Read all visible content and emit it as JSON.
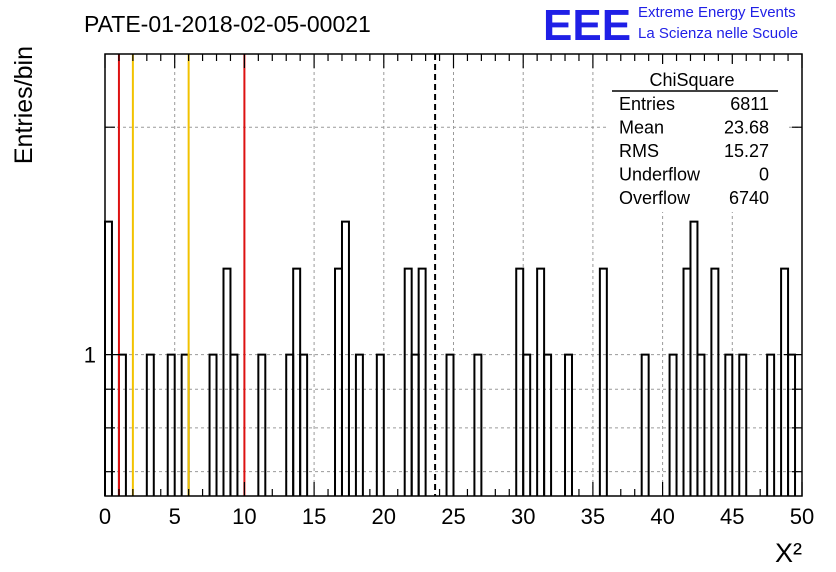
{
  "title": "PATE-01-2018-02-05-00021",
  "logo": {
    "letters": "EEE",
    "line1": "Extreme Energy Events",
    "line2": "La Scienza nelle Scuole",
    "color": "#1f1fe6"
  },
  "colors": {
    "hist": "#000000",
    "red": "#dd1111",
    "yellow": "#f2c200",
    "grid": "#9a9a9a"
  },
  "stats": {
    "title": "ChiSquare",
    "rows": [
      {
        "label": "Entries",
        "value": "6811"
      },
      {
        "label": "Mean",
        "value": "23.68"
      },
      {
        "label": "RMS",
        "value": "15.27"
      },
      {
        "label": "Underflow",
        "value": "0"
      },
      {
        "label": "Overflow",
        "value": "6740"
      }
    ]
  },
  "chart_data": {
    "type": "histogram",
    "xlabel": "X²",
    "ylabel": "Entries/bin",
    "xlim": [
      0,
      50
    ],
    "ylim": [
      0.65,
      2.5
    ],
    "y_scale": "log",
    "grid": true,
    "x_ticks": [
      "0",
      "5",
      "10",
      "15",
      "20",
      "25",
      "30",
      "35",
      "40",
      "45",
      "50"
    ],
    "y_ticks": [
      "1"
    ],
    "bin_width": 0.5,
    "bins": [
      {
        "x": 0.0,
        "y": 1.5
      },
      {
        "x": 1.0,
        "y": 1
      },
      {
        "x": 3.0,
        "y": 1
      },
      {
        "x": 4.5,
        "y": 1
      },
      {
        "x": 5.5,
        "y": 1
      },
      {
        "x": 7.5,
        "y": 1
      },
      {
        "x": 8.5,
        "y": 1.3
      },
      {
        "x": 9.0,
        "y": 1
      },
      {
        "x": 11.0,
        "y": 1
      },
      {
        "x": 13.0,
        "y": 1
      },
      {
        "x": 13.5,
        "y": 1.3
      },
      {
        "x": 14.0,
        "y": 1
      },
      {
        "x": 16.5,
        "y": 1.3
      },
      {
        "x": 17.0,
        "y": 1.5
      },
      {
        "x": 18.0,
        "y": 1
      },
      {
        "x": 19.5,
        "y": 1
      },
      {
        "x": 21.5,
        "y": 1.3
      },
      {
        "x": 22.0,
        "y": 1
      },
      {
        "x": 22.5,
        "y": 1.3
      },
      {
        "x": 24.5,
        "y": 1
      },
      {
        "x": 26.5,
        "y": 1
      },
      {
        "x": 29.5,
        "y": 1.3
      },
      {
        "x": 30.0,
        "y": 1
      },
      {
        "x": 31.0,
        "y": 1.3
      },
      {
        "x": 31.5,
        "y": 1
      },
      {
        "x": 33.0,
        "y": 1
      },
      {
        "x": 35.5,
        "y": 1.3
      },
      {
        "x": 38.5,
        "y": 1
      },
      {
        "x": 40.5,
        "y": 1
      },
      {
        "x": 41.5,
        "y": 1.3
      },
      {
        "x": 42.0,
        "y": 1.5
      },
      {
        "x": 42.5,
        "y": 1
      },
      {
        "x": 43.5,
        "y": 1.3
      },
      {
        "x": 44.5,
        "y": 1
      },
      {
        "x": 45.5,
        "y": 1
      },
      {
        "x": 47.5,
        "y": 1
      },
      {
        "x": 48.5,
        "y": 1.3
      },
      {
        "x": 49.0,
        "y": 1
      }
    ],
    "vlines": [
      {
        "x": 1,
        "color": "red",
        "style": "solid"
      },
      {
        "x": 2,
        "color": "yellow",
        "style": "solid"
      },
      {
        "x": 6,
        "color": "yellow",
        "style": "solid"
      },
      {
        "x": 10,
        "color": "red",
        "style": "solid"
      },
      {
        "x": 23.68,
        "color": "black",
        "style": "dashed"
      }
    ]
  }
}
